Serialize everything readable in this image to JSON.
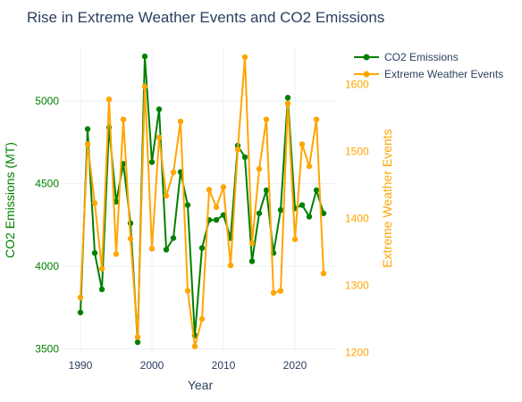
{
  "chart_data": {
    "type": "line",
    "title": "Rise in Extreme Weather Events and CO2 Emissions",
    "xlabel": "Year",
    "y1label": "CO2 Emissions (MT)",
    "y2label": "Extreme Weather Events",
    "xlim": [
      1987.5,
      2026
    ],
    "y1lim": [
      3470,
      5330
    ],
    "y2lim": [
      1198,
      1657
    ],
    "x_ticks": [
      1990,
      2000,
      2010,
      2020
    ],
    "y1_ticks": [
      3500,
      4000,
      4500,
      5000
    ],
    "y2_ticks": [
      1200,
      1300,
      1400,
      1500,
      1600
    ],
    "grid": true,
    "legend_position": "top-right",
    "series": [
      {
        "name": "CO2 Emissions",
        "axis": "y1",
        "color": "#008000",
        "x": [
          1990,
          1991,
          1992,
          1993,
          1994,
          1995,
          1996,
          1997,
          1998,
          1999,
          2000,
          2001,
          2002,
          2003,
          2004,
          2005,
          2006,
          2007,
          2008,
          2009,
          2010,
          2011,
          2012,
          2013,
          2014,
          2015,
          2016,
          2017,
          2018,
          2019,
          2020,
          2021,
          2022,
          2023,
          2024
        ],
        "values": [
          3720,
          4830,
          4080,
          3860,
          4840,
          4390,
          4620,
          4260,
          3540,
          5270,
          4630,
          4950,
          4100,
          4170,
          4570,
          4370,
          3580,
          4110,
          4280,
          4280,
          4310,
          4170,
          4730,
          4660,
          4030,
          4320,
          4460,
          4080,
          4340,
          5020,
          4350,
          4370,
          4300,
          4460,
          4320
        ]
      },
      {
        "name": "Extreme Weather Events",
        "axis": "y2",
        "color": "#FFA500",
        "x": [
          1990,
          1991,
          1992,
          1993,
          1994,
          1995,
          1996,
          1997,
          1998,
          1999,
          2000,
          2001,
          2002,
          2003,
          2004,
          2005,
          2006,
          2007,
          2008,
          2009,
          2010,
          2011,
          2012,
          2013,
          2014,
          2015,
          2016,
          2017,
          2018,
          2019,
          2020,
          2021,
          2022,
          2023,
          2024
        ],
        "values": [
          1282,
          1511,
          1423,
          1325,
          1578,
          1347,
          1548,
          1370,
          1223,
          1597,
          1355,
          1521,
          1434,
          1469,
          1545,
          1292,
          1209,
          1250,
          1443,
          1417,
          1447,
          1330,
          1503,
          1641,
          1363,
          1474,
          1548,
          1289,
          1292,
          1572,
          1369,
          1511,
          1478,
          1548,
          1318
        ]
      }
    ]
  }
}
